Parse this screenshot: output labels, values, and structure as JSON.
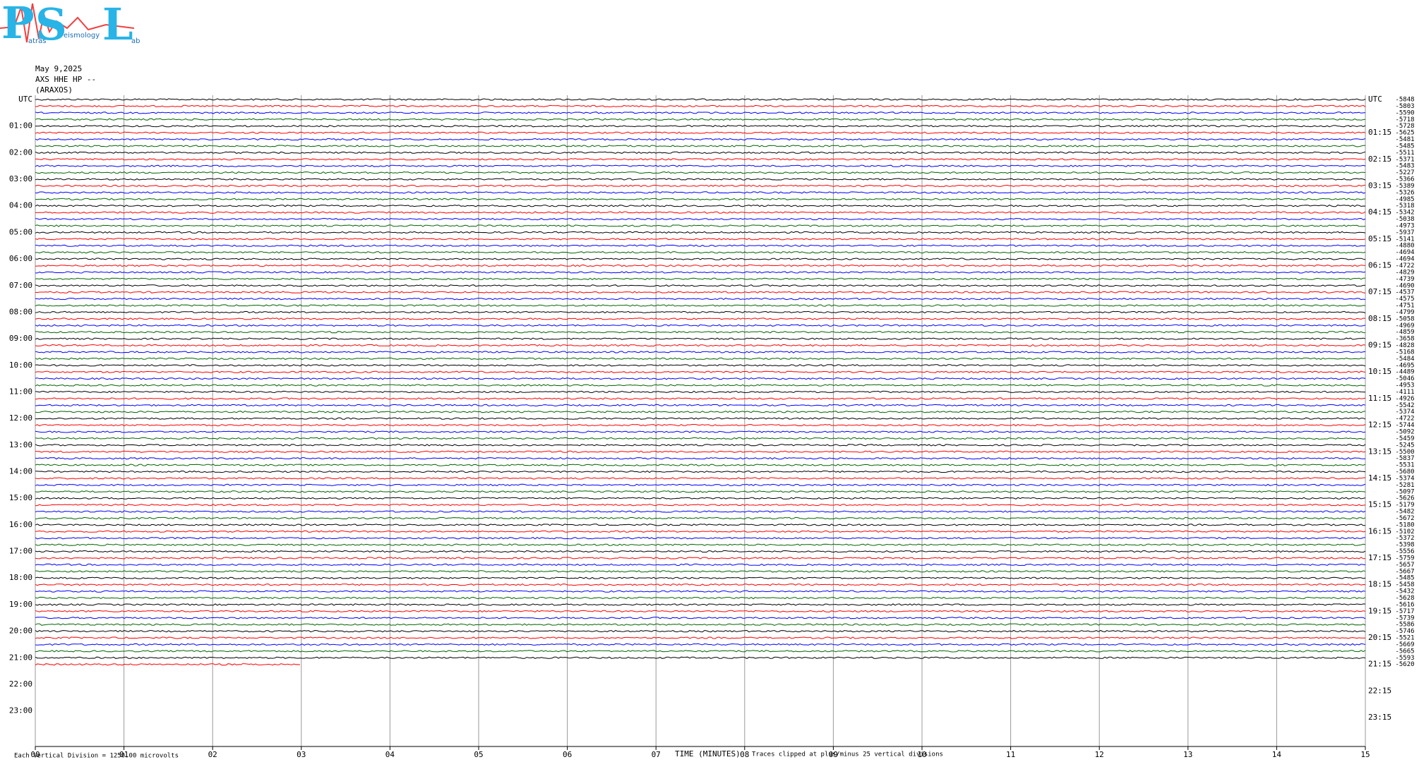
{
  "logo": {
    "big": [
      "P",
      "S",
      "L"
    ],
    "small": [
      "atras",
      "eismology",
      "ab"
    ]
  },
  "chart_data": {
    "type": "helicorder",
    "date": "May 9,2025",
    "station": "AXS HHE HP --",
    "site": "(ARAXOS)",
    "left_labels": [
      "UTC",
      "01:00",
      "02:00",
      "03:00",
      "04:00",
      "05:00",
      "06:00",
      "07:00",
      "08:00",
      "09:00",
      "10:00",
      "11:00",
      "12:00",
      "13:00",
      "14:00",
      "15:00",
      "16:00",
      "17:00",
      "18:00",
      "19:00",
      "20:00",
      "21:00",
      "22:00",
      "23:00"
    ],
    "right_labels": [
      "UTC",
      "01:15",
      "02:15",
      "03:15",
      "04:15",
      "05:15",
      "06:15",
      "07:15",
      "08:15",
      "09:15",
      "10:15",
      "11:15",
      "12:15",
      "13:15",
      "14:15",
      "15:15",
      "16:15",
      "17:15",
      "18:15",
      "19:15",
      "20:15",
      "21:15",
      "22:15",
      "23:15"
    ],
    "trace_offsets": [
      -5848,
      -5803,
      -5590,
      -5718,
      -5728,
      -5625,
      -5481,
      -5485,
      -5511,
      -5371,
      -5483,
      -5227,
      -5366,
      -5389,
      -5326,
      -4985,
      -5318,
      -5342,
      -5038,
      -4973,
      -5937,
      -5141,
      -4880,
      -4694,
      -4694,
      -4722,
      -4829,
      -4739,
      -4690,
      -4537,
      -4575,
      -4751,
      -4799,
      -5058,
      -4969,
      -4859,
      -3658,
      -4828,
      -5168,
      -5484,
      -4695,
      -4489,
      -5046,
      -4953,
      -4111,
      -4926,
      -5542,
      -5374,
      -4722,
      -5744,
      -5092,
      -5459,
      -5245,
      -5500,
      -5837,
      -5531,
      -5680,
      -5374,
      -5281,
      -5097,
      -5626,
      -5179,
      -5482,
      -5672,
      -5180,
      -5102,
      -5372,
      -5398,
      -5556,
      -5759,
      -5657,
      -5667,
      -5485,
      -5458,
      -5432,
      -5628,
      -5616,
      -5717,
      -5739,
      -5586,
      -5746,
      -5521,
      -5669,
      -5665,
      -5593,
      -5620
    ],
    "trace_colors": [
      "#000000",
      "#ff0000",
      "#0000ff",
      "#006400"
    ],
    "xlim": [
      0,
      15
    ],
    "xticks": [
      {
        "value": 0,
        "label": "00"
      },
      {
        "value": 1,
        "label": "01"
      },
      {
        "value": 2,
        "label": "02"
      },
      {
        "value": 3,
        "label": "03"
      },
      {
        "value": 4,
        "label": "04"
      },
      {
        "value": 5,
        "label": "05"
      },
      {
        "value": 6,
        "label": "06"
      },
      {
        "value": 7,
        "label": "07"
      },
      {
        "value": 8,
        "label": "08"
      },
      {
        "value": 9,
        "label": "09"
      },
      {
        "value": 10,
        "label": "10"
      },
      {
        "value": 11,
        "label": "11"
      },
      {
        "value": 12,
        "label": "12"
      },
      {
        "value": 13,
        "label": "13"
      },
      {
        "value": 14,
        "label": "14"
      },
      {
        "value": 15,
        "label": "15"
      }
    ],
    "last_trace_minutes": 3,
    "xlabel": "TIME (MINUTES)",
    "scale_note": "Each Vertical Division = 1250.00 microvolts",
    "clip_note": "Traces clipped at plus/minus 25 vertical divisions"
  }
}
